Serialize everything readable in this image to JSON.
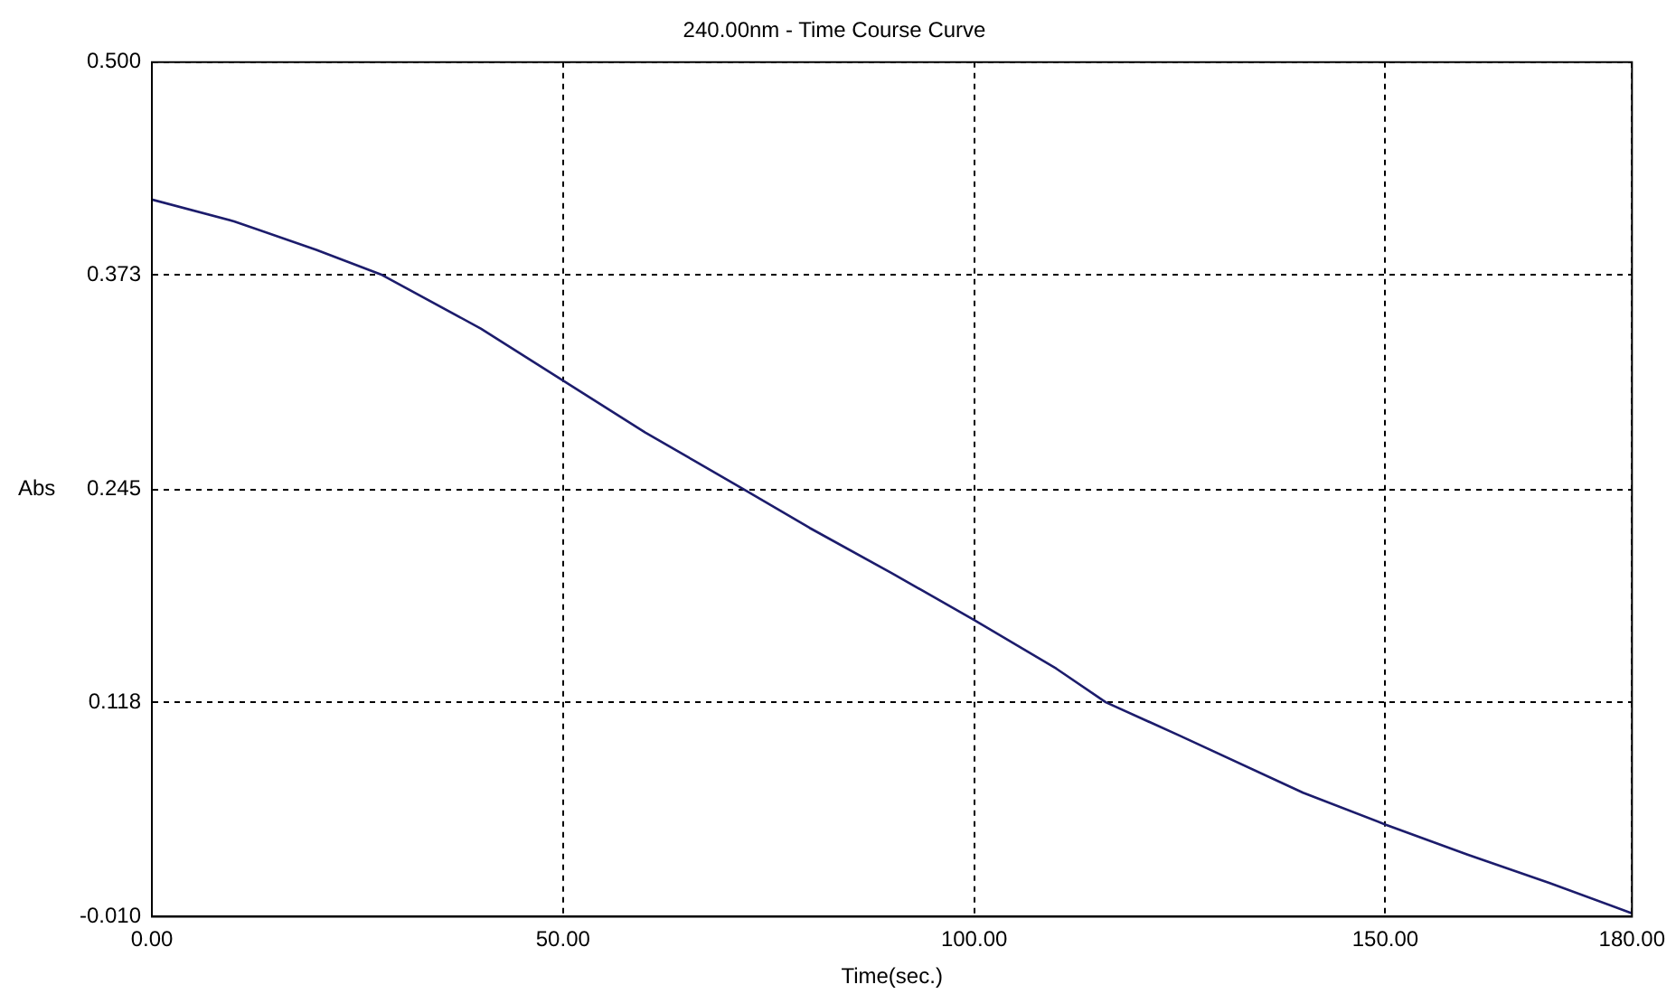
{
  "chart_data": {
    "type": "line",
    "title": "240.00nm - Time Course Curve",
    "xlabel": "Time(sec.)",
    "ylabel": "Abs",
    "x": [
      0,
      10,
      20,
      28,
      40,
      50,
      60,
      72,
      80,
      90,
      100,
      110,
      116,
      125,
      140,
      150,
      160,
      170,
      180
    ],
    "series": [
      {
        "color": "#1c1c6c",
        "values": [
          0.418,
          0.405,
          0.388,
          0.373,
          0.341,
          0.31,
          0.279,
          0.245,
          0.222,
          0.195,
          0.167,
          0.138,
          0.118,
          0.098,
          0.064,
          0.045,
          0.027,
          0.01,
          -0.008
        ]
      }
    ],
    "xlim": [
      0,
      180
    ],
    "xticks": [
      {
        "value": 0,
        "label": "0.00"
      },
      {
        "value": 50,
        "label": "50.00"
      },
      {
        "value": 100,
        "label": "100.00"
      },
      {
        "value": 150,
        "label": "150.00"
      },
      {
        "value": 180,
        "label": "180.00"
      }
    ],
    "ylim": [
      -0.01,
      0.5
    ],
    "yticks": [
      {
        "value": -0.01,
        "label": "-0.010"
      },
      {
        "value": 0.118,
        "label": "0.118"
      },
      {
        "value": 0.245,
        "label": "0.245"
      },
      {
        "value": 0.373,
        "label": "0.373"
      },
      {
        "value": 0.5,
        "label": "0.500"
      }
    ],
    "grid": true,
    "legend": false,
    "marker": "none",
    "line_style": "solid"
  }
}
